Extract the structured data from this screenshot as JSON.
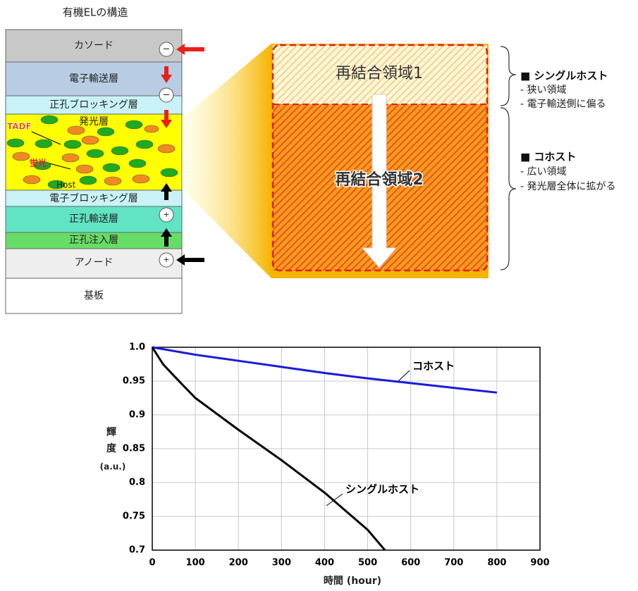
{
  "structure": {
    "title": "有機ELの構造",
    "layers": [
      "カソード",
      "電子輸送層",
      "正孔ブロッキング層",
      "発光層",
      "電子ブロッキング層",
      "正孔輸送層",
      "正孔注入層",
      "アノード",
      "基板"
    ],
    "labels": {
      "tadf": "TADF",
      "fluorescent": "蛍光",
      "host": "Host"
    }
  },
  "zoom": {
    "region1": "再結合領域1",
    "region2": "再結合領域2"
  },
  "notes": {
    "single_host": {
      "title": "■ シングルホスト",
      "items": [
        "- 狭い領域",
        "- 電子輸送側に偏る"
      ]
    },
    "co_host": {
      "title": "■ コホスト",
      "items": [
        "- 広い領域",
        "- 発光層全体に拡がる"
      ]
    }
  },
  "chart_data": {
    "type": "line",
    "xlabel": "時間 (hour)",
    "ylabel_lines": [
      "輝",
      "度",
      "(a.u.)"
    ],
    "xlim": [
      0,
      900
    ],
    "xticks": [
      0,
      100,
      200,
      300,
      400,
      500,
      600,
      700,
      800,
      900
    ],
    "ylim": [
      0.7,
      1.0
    ],
    "yticks": [
      {
        "value": 1,
        "label": "1.0"
      },
      0.95,
      0.9,
      0.85,
      0.8,
      0.75,
      0.7
    ],
    "grid": true,
    "series": [
      {
        "name": "コホスト",
        "color": "#1a1adc",
        "x": [
          0,
          100,
          200,
          300,
          400,
          500,
          600,
          700,
          800
        ],
        "values": [
          1.0,
          0.989,
          0.98,
          0.971,
          0.962,
          0.954,
          0.947,
          0.94,
          0.933
        ]
      },
      {
        "name": "シングルホスト",
        "color": "#000000",
        "x": [
          0,
          25,
          50,
          100,
          200,
          300,
          400,
          500,
          540
        ],
        "values": [
          1.0,
          0.975,
          0.958,
          0.925,
          0.878,
          0.833,
          0.785,
          0.73,
          0.7
        ]
      }
    ]
  }
}
